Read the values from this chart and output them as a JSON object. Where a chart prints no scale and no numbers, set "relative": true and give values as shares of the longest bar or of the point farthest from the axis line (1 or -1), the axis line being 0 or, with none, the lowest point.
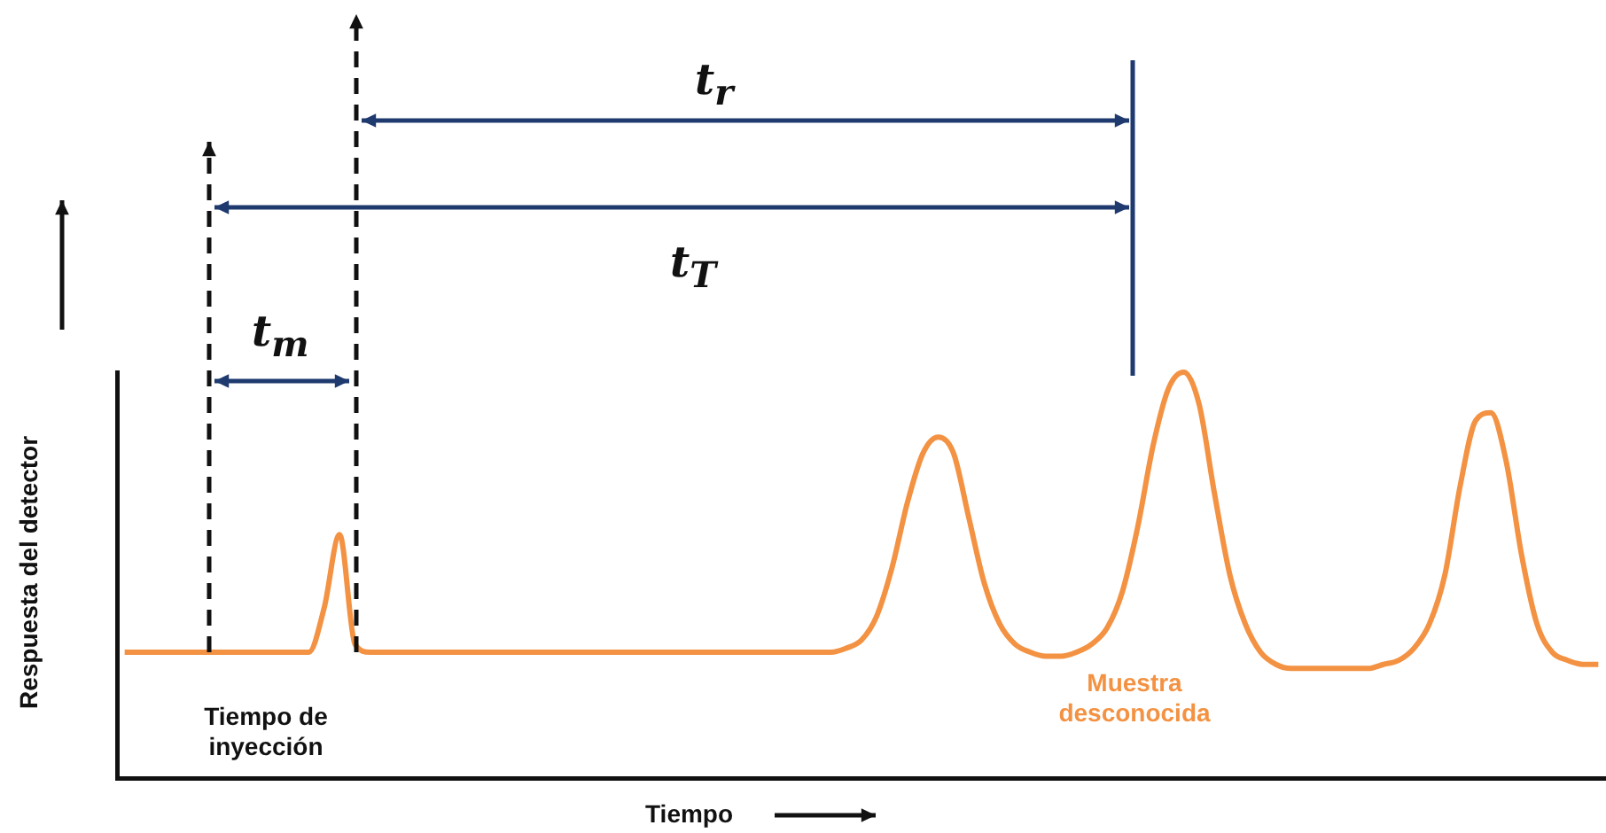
{
  "chart_data": {
    "type": "line",
    "relative": true,
    "xlabel": "Tiempo",
    "ylabel": "Respuesta del detector",
    "annotations": [
      "t$_{r}$",
      "t$_{T}$",
      "t$_{m}$",
      "Tiempo de inyección",
      "Muestra desconocida"
    ],
    "categories": [
      null,
      null,
      null,
      null,
      null,
      null,
      null,
      null,
      null,
      null,
      null,
      null,
      null,
      null,
      null,
      null,
      null,
      null,
      null,
      null,
      null,
      null,
      null,
      null,
      null,
      null,
      null,
      null,
      null,
      null,
      null,
      null,
      null,
      null,
      null,
      null,
      null,
      null,
      null,
      null,
      null,
      null,
      null,
      null,
      null,
      null,
      null,
      null,
      null,
      null,
      null,
      null,
      null,
      null,
      null,
      null,
      null,
      null,
      null,
      null,
      null,
      null,
      null,
      null,
      null,
      null,
      null,
      null,
      null,
      null,
      null,
      null,
      null,
      null,
      null,
      null,
      null,
      null,
      null,
      null,
      null,
      null,
      null,
      null,
      null,
      null,
      null,
      null,
      null,
      null,
      null,
      null,
      null,
      null,
      null,
      null,
      null
    ],
    "series": [
      {
        "color": "#f39242",
        "values": [
          0.31,
          0.31,
          0.31,
          0.31,
          0.31,
          0.31,
          0.31,
          0.31,
          0.31,
          0.31,
          0.31,
          0.31,
          0.31,
          0.42,
          0.6,
          0.33,
          0.31,
          0.31,
          0.31,
          0.31,
          0.31,
          0.31,
          0.31,
          0.31,
          0.31,
          0.31,
          0.31,
          0.31,
          0.31,
          0.31,
          0.31,
          0.31,
          0.31,
          0.31,
          0.31,
          0.31,
          0.31,
          0.31,
          0.31,
          0.31,
          0.31,
          0.31,
          0.31,
          0.31,
          0.31,
          0.31,
          0.31,
          0.32,
          0.34,
          0.4,
          0.52,
          0.68,
          0.8,
          0.84,
          0.8,
          0.64,
          0.48,
          0.38,
          0.33,
          0.31,
          0.3,
          0.3,
          0.31,
          0.33,
          0.37,
          0.46,
          0.62,
          0.82,
          0.96,
          1,
          0.92,
          0.7,
          0.5,
          0.38,
          0.31,
          0.28,
          0.27,
          0.27,
          0.27,
          0.27,
          0.27,
          0.27,
          0.28,
          0.29,
          0.32,
          0.38,
          0.5,
          0.72,
          0.88,
          0.9,
          0.78,
          0.55,
          0.38,
          0.31,
          0.29,
          0.28,
          0.28
        ]
      }
    ],
    "grid": false,
    "legend": false,
    "marker": "none",
    "line_style": "solid"
  }
}
